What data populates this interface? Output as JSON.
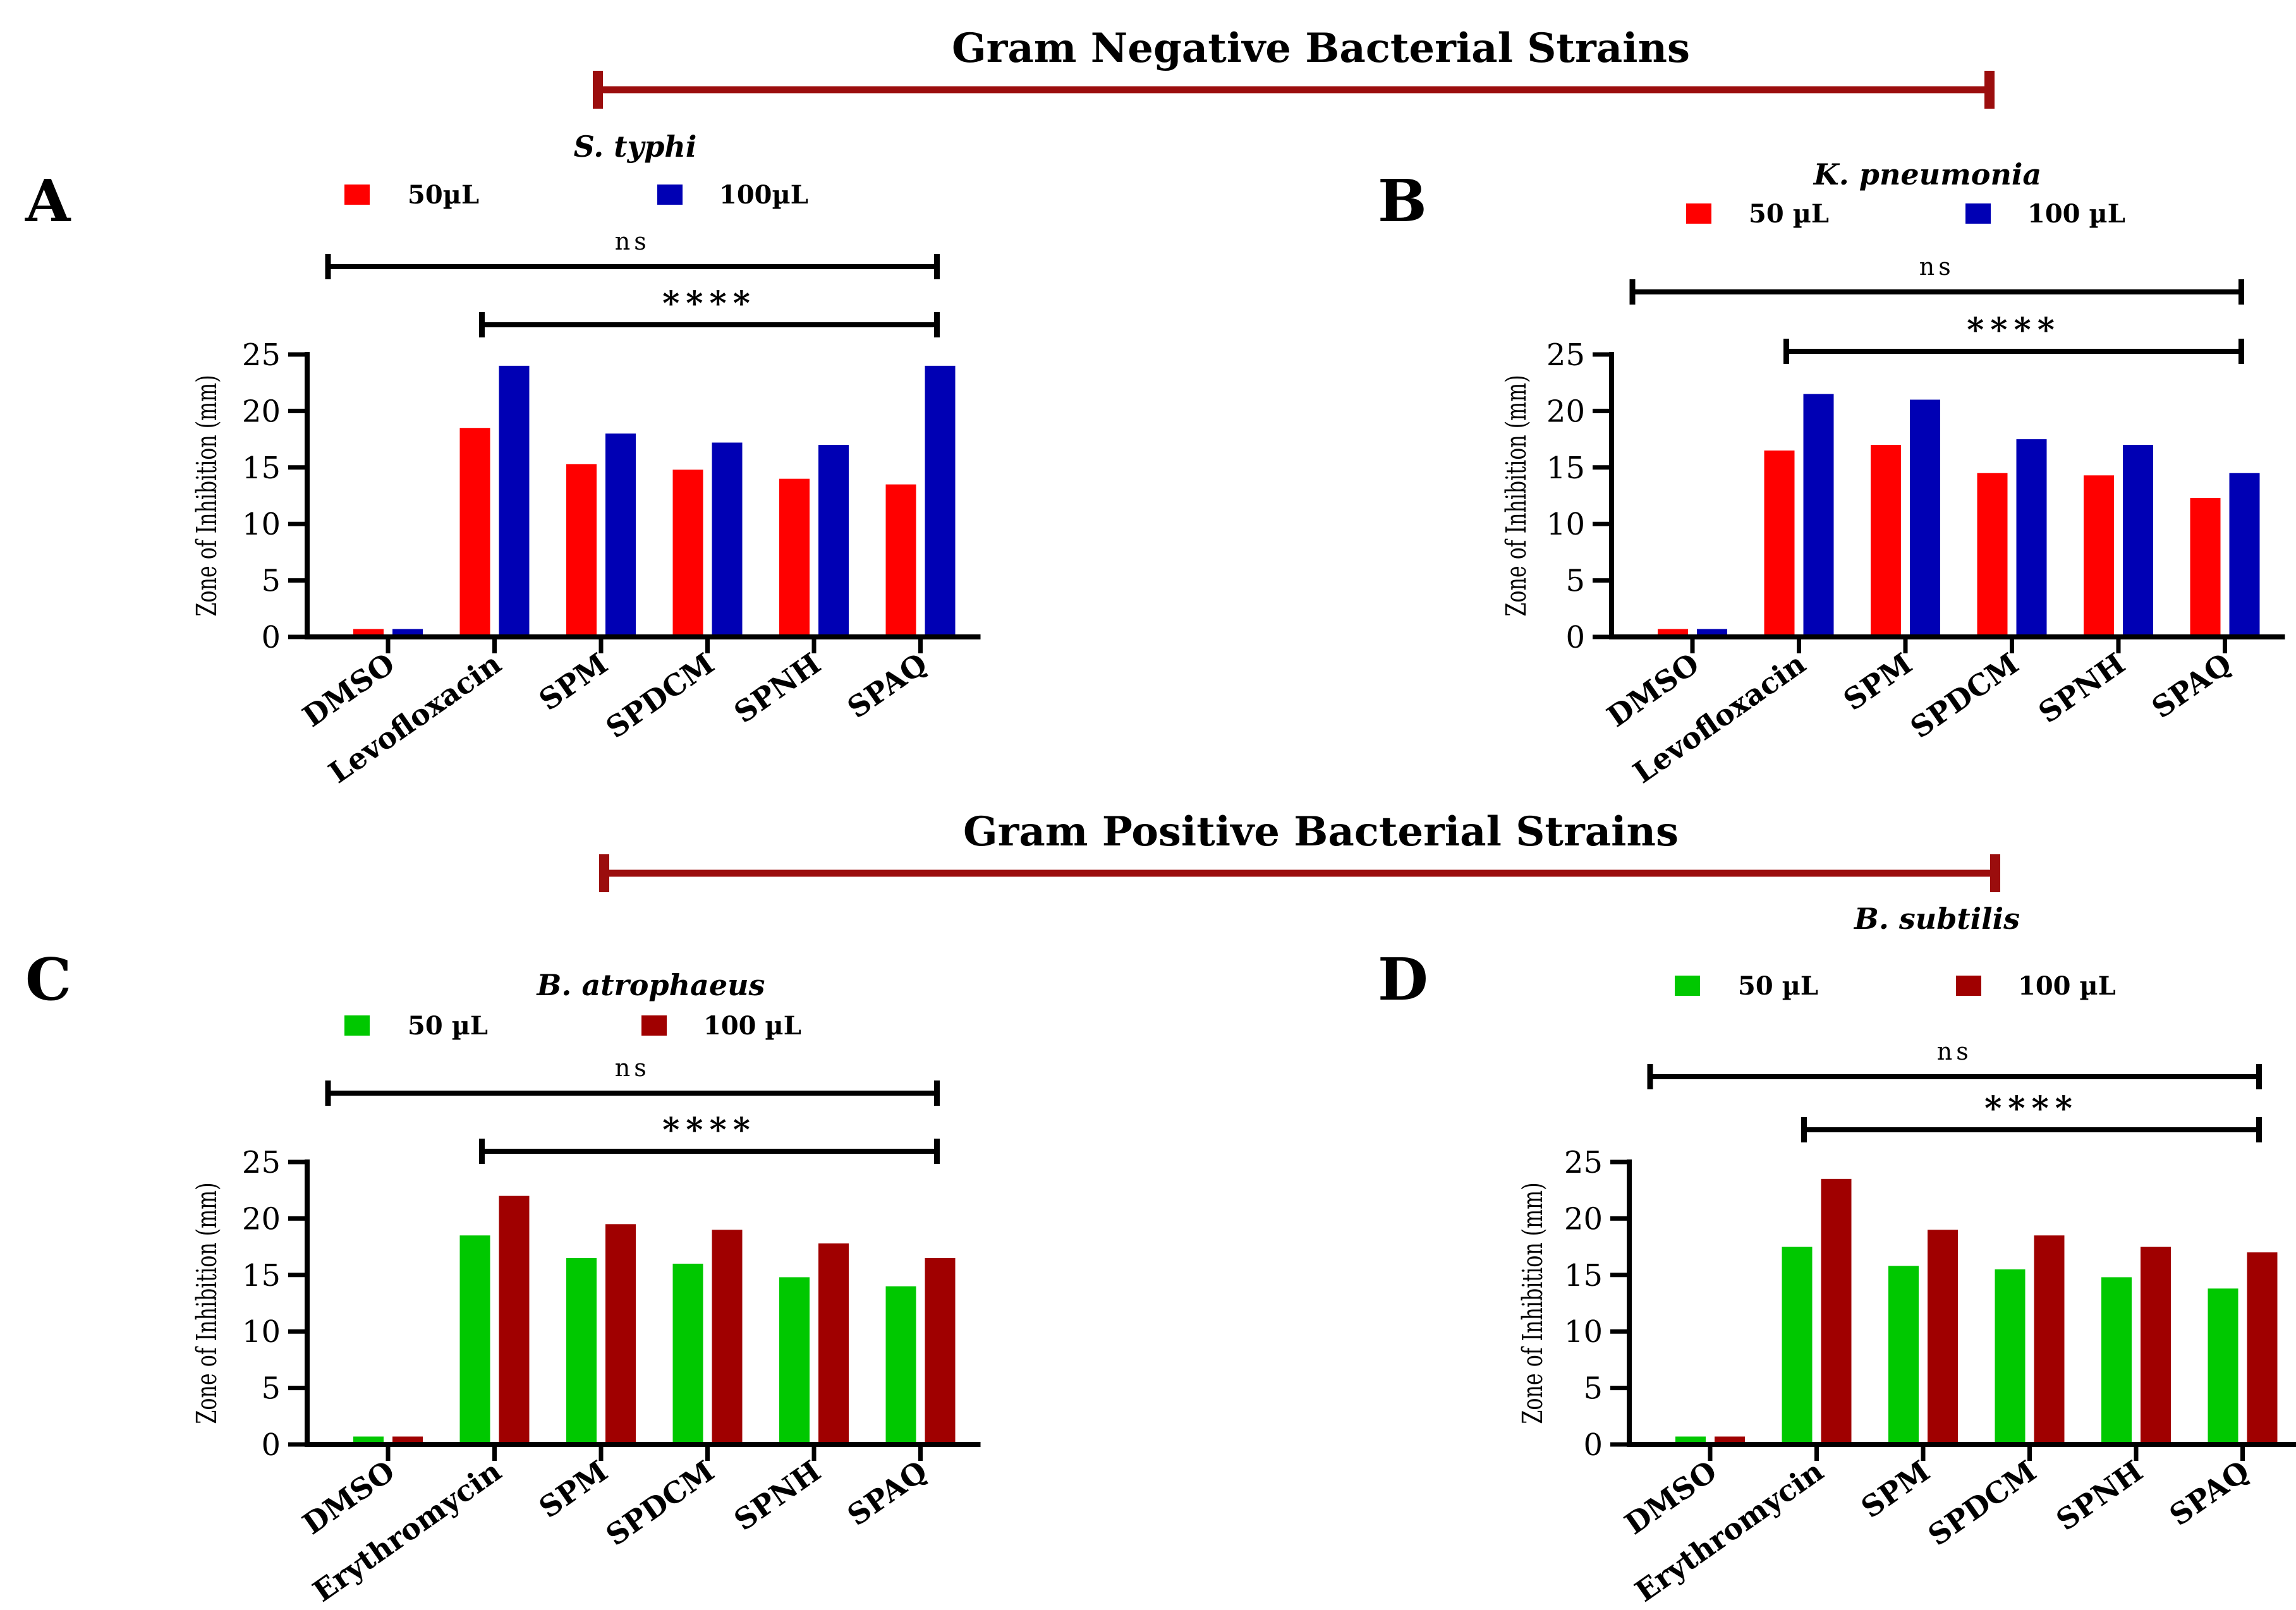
{
  "sections": {
    "gram_negative_title": "Gram Negative Bacterial Strains",
    "gram_positive_title": "Gram Positive Bacterial Strains"
  },
  "colors": {
    "red": "#ff0000",
    "blue": "#0000b4",
    "green": "#00c800",
    "darkred": "#a00000",
    "bracket": "#9b0d0d",
    "axis": "#000000"
  },
  "chart_data": [
    {
      "type": "bar",
      "panel": "A",
      "title": "S. typhi",
      "categories": [
        "DMSO",
        "Levofloxacin",
        "SPM",
        "SPDCM",
        "SPNH",
        "SPAQ"
      ],
      "series": [
        {
          "name": "50µL",
          "color": "red",
          "values": [
            0.7,
            18.5,
            15.3,
            14.8,
            14.0,
            13.5
          ]
        },
        {
          "name": "100µL",
          "color": "blue",
          "values": [
            0.7,
            24.0,
            18.0,
            17.2,
            17.0,
            24.0
          ]
        }
      ],
      "xlabel": "",
      "ylabel": "Zone of Inhibition (mm)",
      "ylim": [
        0,
        25
      ],
      "yticks": [
        0,
        5,
        10,
        15,
        20,
        25
      ],
      "legend": "top",
      "significance": [
        {
          "label": "ns",
          "from": "DMSO",
          "to": "SPAQ"
        },
        {
          "label": "****",
          "from": "Levofloxacin",
          "to": "SPAQ"
        }
      ]
    },
    {
      "type": "bar",
      "panel": "B",
      "title": "K. pneumonia",
      "categories": [
        "DMSO",
        "Levofloxacin",
        "SPM",
        "SPDCM",
        "SPNH",
        "SPAQ"
      ],
      "series": [
        {
          "name": "50 µL",
          "color": "red",
          "values": [
            0.7,
            16.5,
            17.0,
            14.5,
            14.3,
            12.3
          ]
        },
        {
          "name": "100 µL",
          "color": "blue",
          "values": [
            0.7,
            21.5,
            21.0,
            17.5,
            17.0,
            14.5
          ]
        }
      ],
      "xlabel": "",
      "ylabel": "Zone of Inhibition (mm)",
      "ylim": [
        0,
        25
      ],
      "yticks": [
        0,
        5,
        10,
        15,
        20,
        25
      ],
      "legend": "top",
      "significance": [
        {
          "label": "ns",
          "from": "DMSO",
          "to": "SPAQ"
        },
        {
          "label": "****",
          "from": "Levofloxacin",
          "to": "SPAQ"
        }
      ]
    },
    {
      "type": "bar",
      "panel": "C",
      "title": "B. atrophaeus",
      "categories": [
        "DMSO",
        "Erythromycin",
        "SPM",
        "SPDCM",
        "SPNH",
        "SPAQ"
      ],
      "series": [
        {
          "name": "50 µL",
          "color": "green",
          "values": [
            0.7,
            18.5,
            16.5,
            16.0,
            14.8,
            14.0
          ]
        },
        {
          "name": "100 µL",
          "color": "darkred",
          "values": [
            0.7,
            22.0,
            19.5,
            19.0,
            17.8,
            16.5
          ]
        }
      ],
      "xlabel": "",
      "ylabel": "Zone of Inhibition (mm)",
      "ylim": [
        0,
        25
      ],
      "yticks": [
        0,
        5,
        10,
        15,
        20,
        25
      ],
      "legend": "top",
      "significance": [
        {
          "label": "ns",
          "from": "DMSO",
          "to": "SPAQ"
        },
        {
          "label": "****",
          "from": "Erythromycin",
          "to": "SPAQ"
        }
      ]
    },
    {
      "type": "bar",
      "panel": "D",
      "title": "B. subtilis",
      "categories": [
        "DMSO",
        "Erythromycin",
        "SPM",
        "SPDCM",
        "SPNH",
        "SPAQ"
      ],
      "series": [
        {
          "name": "50 µL",
          "color": "green",
          "values": [
            0.7,
            17.5,
            15.8,
            15.5,
            14.8,
            13.8
          ]
        },
        {
          "name": "100 µL",
          "color": "darkred",
          "values": [
            0.7,
            23.5,
            19.0,
            18.5,
            17.5,
            17.0
          ]
        }
      ],
      "xlabel": "",
      "ylabel": "Zone of Inhibition (mm)",
      "ylim": [
        0,
        25
      ],
      "yticks": [
        0,
        5,
        10,
        15,
        20,
        25
      ],
      "legend": "top",
      "significance": [
        {
          "label": "ns",
          "from": "DMSO",
          "to": "SPAQ"
        },
        {
          "label": "****",
          "from": "Erythromycin",
          "to": "SPAQ"
        }
      ]
    }
  ]
}
